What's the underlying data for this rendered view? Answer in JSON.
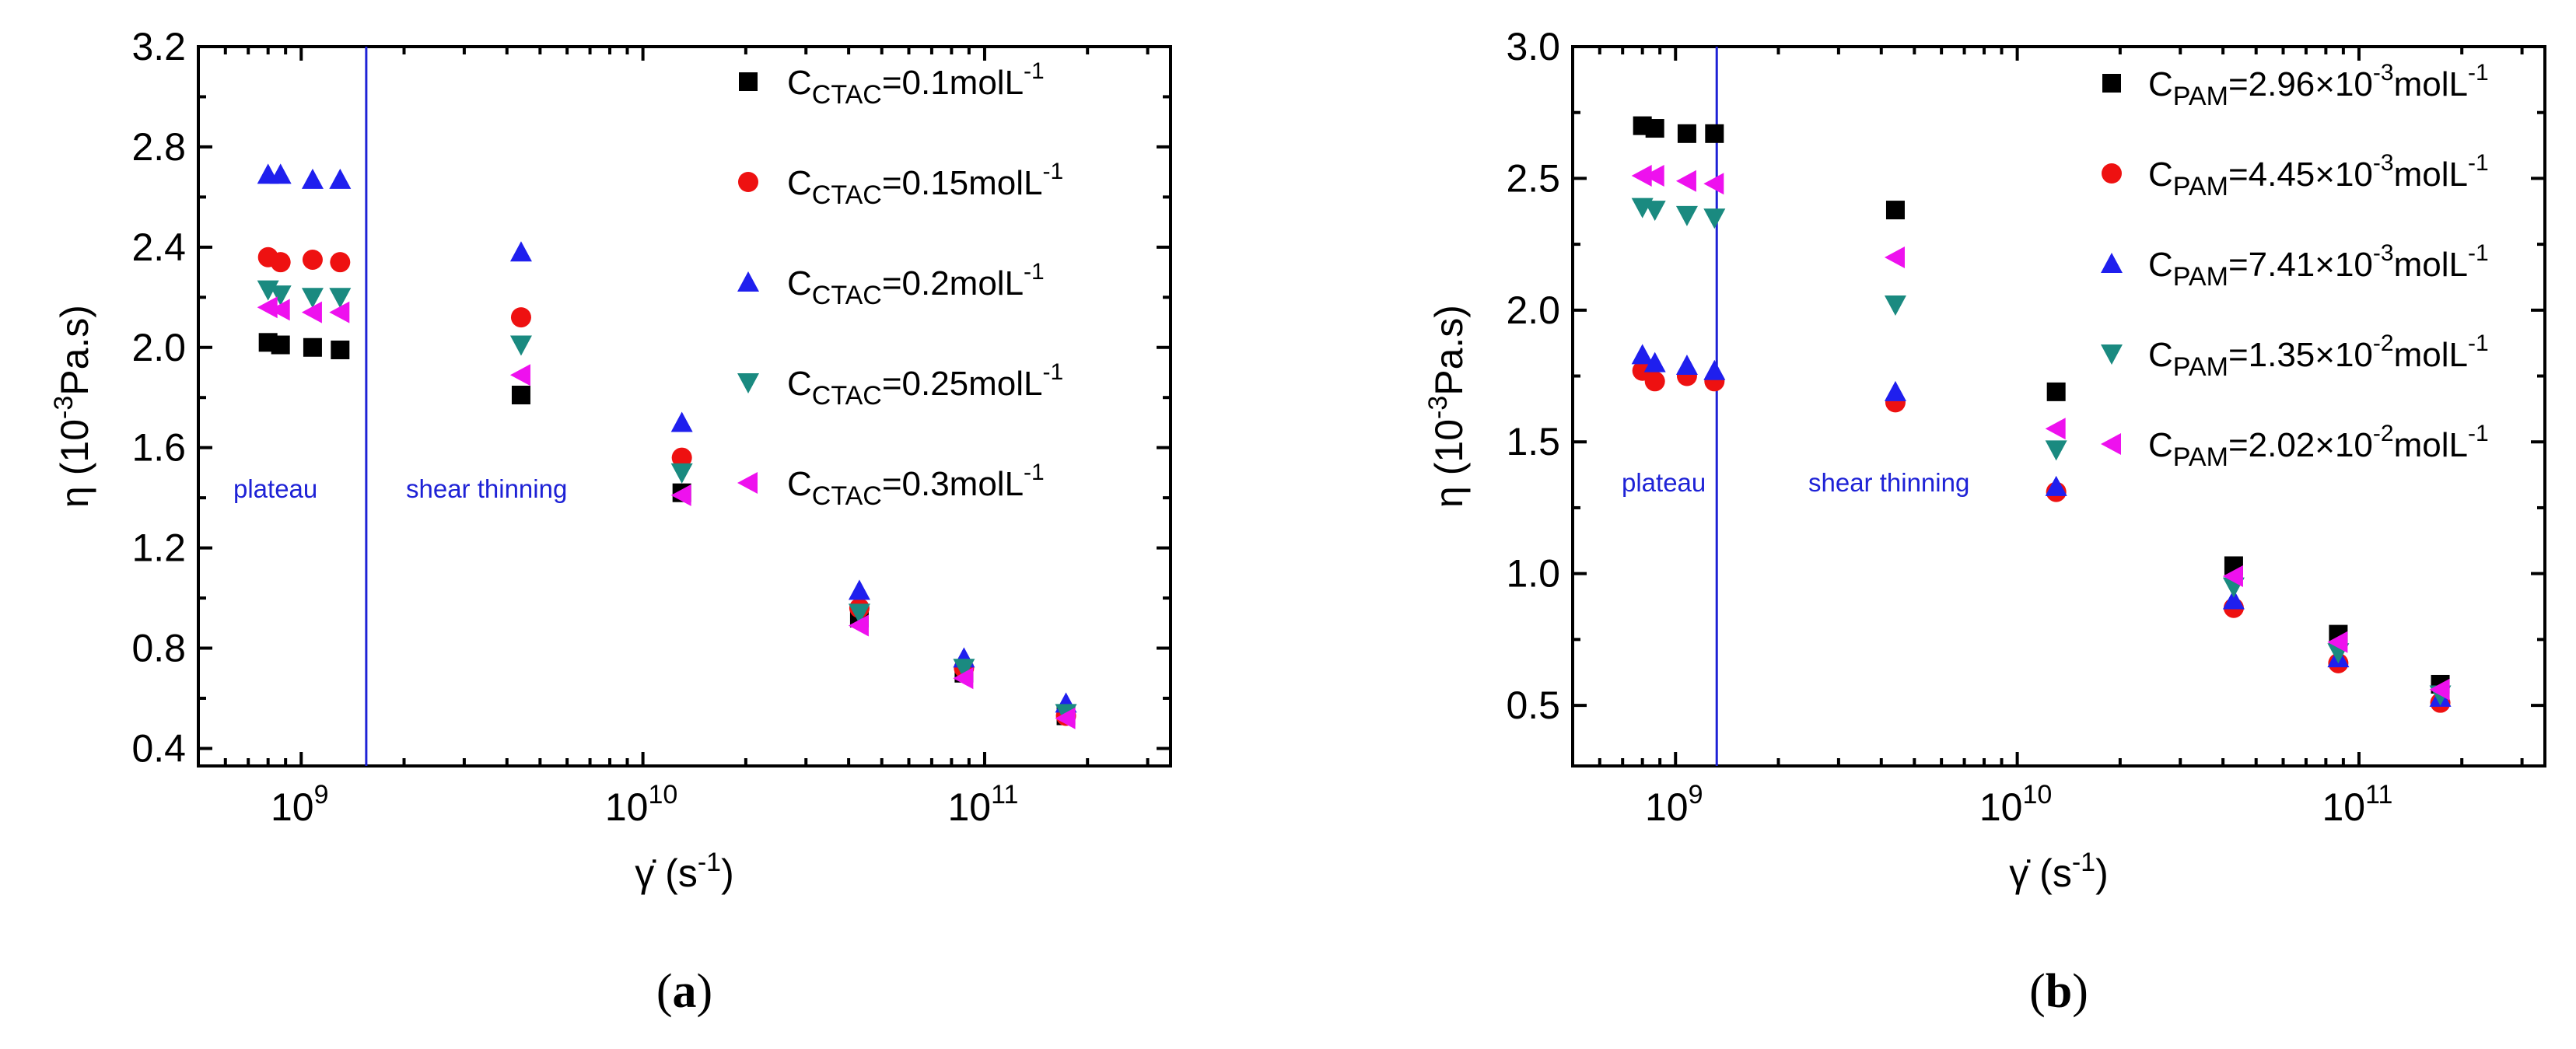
{
  "colors": {
    "s1": "#000000",
    "s2": "#ee1111",
    "s3": "#1f1fee",
    "s4": "#1a8a80",
    "s5": "#ee11ee",
    "divider": "#1e22d6",
    "region_text": "#1e22d6"
  },
  "chart_data": [
    {
      "panel": "a",
      "type": "scatter",
      "xscale": "log",
      "x_ticks": [
        1000000000,
        10000000000,
        100000000000
      ],
      "x_tick_labels": [
        {
          "base": "10",
          "exp": "9"
        },
        {
          "base": "10",
          "exp": "10"
        },
        {
          "base": "10",
          "exp": "11"
        }
      ],
      "xlim": [
        500000000,
        350000000000
      ],
      "ylim": [
        0.33,
        3.2
      ],
      "y_ticks": [
        "0.4",
        "0.8",
        "1.2",
        "1.6",
        "2.0",
        "2.4",
        "2.8",
        "3.2"
      ],
      "ylabel": {
        "main": "η (10",
        "sup": "-3",
        "tail": "Pa.s)"
      },
      "xlabel": {
        "main": "γ̇ (s",
        "sup": "-1",
        "tail": ")"
      },
      "caption": {
        "open": "(",
        "letter": "a",
        "close": ")"
      },
      "divider_x": 1550000000,
      "regions": [
        "plateau",
        "shear thinning"
      ],
      "x": [
        800000000,
        870000000,
        1080000000,
        1300000000,
        4400000000,
        13000000000,
        43000000000,
        87000000000,
        173000000000
      ],
      "series": [
        {
          "name": {
            "prefix": "C",
            "sub": "CTAC",
            "mid": "=0.1molL",
            "sup": "-1"
          },
          "marker": "square",
          "color_key": "s1",
          "values": [
            2.02,
            2.01,
            2.0,
            1.99,
            1.81,
            1.42,
            0.92,
            0.7,
            0.53
          ]
        },
        {
          "name": {
            "prefix": "C",
            "sub": "CTAC",
            "mid": "=0.15molL",
            "sup": "-1"
          },
          "marker": "circle",
          "color_key": "s2",
          "values": [
            2.36,
            2.34,
            2.35,
            2.34,
            2.12,
            1.56,
            0.96,
            0.72,
            0.53
          ]
        },
        {
          "name": {
            "prefix": "C",
            "sub": "CTAC",
            "mid": "=0.2molL",
            "sup": "-1"
          },
          "marker": "triangle-up",
          "color_key": "s3",
          "values": [
            2.69,
            2.69,
            2.67,
            2.67,
            2.38,
            1.7,
            1.03,
            0.76,
            0.58
          ]
        },
        {
          "name": {
            "prefix": "C",
            "sub": "CTAC",
            "mid": "=0.25molL",
            "sup": "-1"
          },
          "marker": "triangle-down",
          "color_key": "s4",
          "values": [
            2.23,
            2.21,
            2.2,
            2.2,
            2.01,
            1.5,
            0.94,
            0.72,
            0.54
          ]
        },
        {
          "name": {
            "prefix": "C",
            "sub": "CTAC",
            "mid": "=0.3molL",
            "sup": "-1"
          },
          "marker": "triangle-left",
          "color_key": "s5",
          "values": [
            2.16,
            2.15,
            2.14,
            2.14,
            1.89,
            1.41,
            0.89,
            0.68,
            0.52
          ]
        }
      ]
    },
    {
      "panel": "b",
      "type": "scatter",
      "xscale": "log",
      "x_ticks": [
        1000000000,
        10000000000,
        100000000000
      ],
      "x_tick_labels": [
        {
          "base": "10",
          "exp": "9"
        },
        {
          "base": "10",
          "exp": "10"
        },
        {
          "base": "10",
          "exp": "11"
        }
      ],
      "xlim": [
        500000000,
        350000000000
      ],
      "ylim": [
        0.27,
        3.0
      ],
      "y_ticks": [
        "0.5",
        "1.0",
        "1.5",
        "2.0",
        "2.5",
        "3.0"
      ],
      "ylabel": {
        "main": "η (10",
        "sup": "-3",
        "tail": "Pa.s)"
      },
      "xlabel": {
        "main": "γ̇ (s",
        "sup": "-1",
        "tail": ")"
      },
      "caption": {
        "open": "(",
        "letter": "b",
        "close": ")"
      },
      "divider_x": 1320000000,
      "regions": [
        "plateau",
        "shear thinning"
      ],
      "x": [
        800000000,
        870000000,
        1080000000,
        1300000000,
        4400000000,
        13000000000,
        43000000000,
        87000000000,
        173000000000
      ],
      "series": [
        {
          "name": {
            "prefix": "C",
            "sub": "PAM",
            "mid": "=2.96×10",
            "sup": "-3",
            "tail": "molL",
            "sup2": "-1"
          },
          "marker": "square",
          "color_key": "s1",
          "values": [
            2.7,
            2.69,
            2.67,
            2.67,
            2.38,
            1.69,
            1.03,
            0.77,
            0.58
          ]
        },
        {
          "name": {
            "prefix": "C",
            "sub": "PAM",
            "mid": "=4.45×10",
            "sup": "-3",
            "tail": "molL",
            "sup2": "-1"
          },
          "marker": "circle",
          "color_key": "s2",
          "values": [
            1.77,
            1.73,
            1.75,
            1.73,
            1.65,
            1.31,
            0.87,
            0.66,
            0.51
          ]
        },
        {
          "name": {
            "prefix": "C",
            "sub": "PAM",
            "mid": "=7.41×10",
            "sup": "-3",
            "tail": "molL",
            "sup2": "-1"
          },
          "marker": "triangle-up",
          "color_key": "s3",
          "values": [
            1.83,
            1.8,
            1.79,
            1.77,
            1.69,
            1.33,
            0.9,
            0.68,
            0.53
          ]
        },
        {
          "name": {
            "prefix": "C",
            "sub": "PAM",
            "mid": "=1.35×10",
            "sup": "-2",
            "tail": "molL",
            "sup2": "-1"
          },
          "marker": "triangle-down",
          "color_key": "s4",
          "values": [
            2.39,
            2.38,
            2.36,
            2.35,
            2.02,
            1.47,
            0.95,
            0.7,
            0.54
          ]
        },
        {
          "name": {
            "prefix": "C",
            "sub": "PAM",
            "mid": "=2.02×10",
            "sup": "-2",
            "tail": "molL",
            "sup2": "-1"
          },
          "marker": "triangle-left",
          "color_key": "s5",
          "values": [
            2.51,
            2.51,
            2.49,
            2.48,
            2.2,
            1.55,
            0.99,
            0.74,
            0.56
          ]
        }
      ]
    }
  ]
}
